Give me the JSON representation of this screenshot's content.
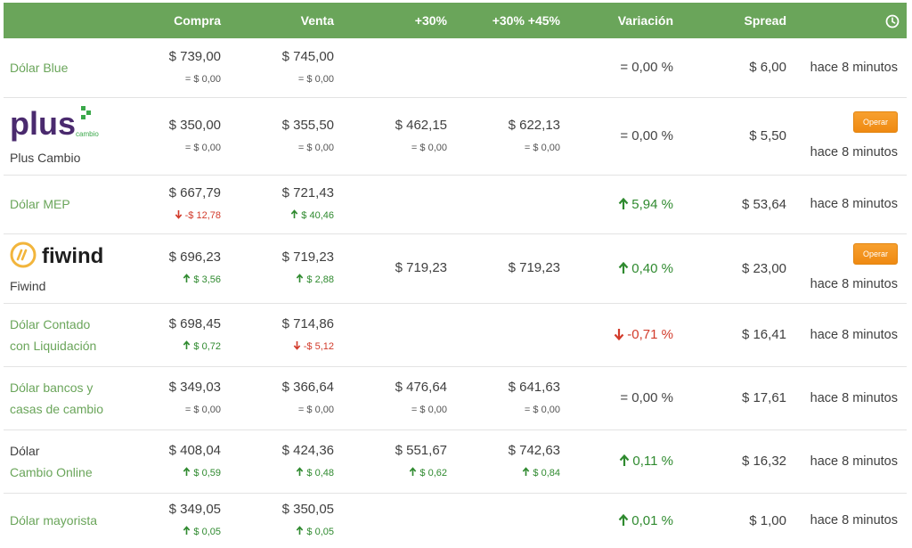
{
  "header": {
    "col_compra": "Compra",
    "col_venta": "Venta",
    "col_30": "+30%",
    "col_30_45": "+30% +45%",
    "col_variacion": "Variación",
    "col_spread": "Spread",
    "clock_icon": "clock-icon"
  },
  "colors": {
    "header_green": "#6aa55a",
    "up_green": "#2f8a2f",
    "down_red": "#d23b2b",
    "operar_orange": "#ef8a12"
  },
  "rows": [
    {
      "name": "Dólar Blue",
      "compra": "$ 739,00",
      "compra_delta": "= $ 0,00",
      "compra_dir": "eq",
      "venta": "$ 745,00",
      "venta_delta": "= $ 0,00",
      "venta_dir": "eq",
      "variacion": "= 0,00 %",
      "variacion_dir": "eq",
      "spread": "$ 6,00",
      "time": "hace 8 minutos"
    },
    {
      "name": "Plus Cambio",
      "logo_text": "plus",
      "logo_sub": "cambio",
      "compra": "$ 350,00",
      "compra_delta": "= $ 0,00",
      "compra_dir": "eq",
      "venta": "$ 355,50",
      "venta_delta": "= $ 0,00",
      "venta_dir": "eq",
      "p30": "$ 462,15",
      "p30_delta": "= $ 0,00",
      "p30_dir": "eq",
      "p3045": "$ 622,13",
      "p3045_delta": "= $ 0,00",
      "p3045_dir": "eq",
      "variacion": "= 0,00 %",
      "variacion_dir": "eq",
      "spread": "$ 5,50",
      "operar": "Operar",
      "time": "hace 8 minutos"
    },
    {
      "name": "Dólar MEP",
      "compra": "$ 667,79",
      "compra_delta": "-$ 12,78",
      "compra_dir": "down",
      "venta": "$ 721,43",
      "venta_delta": "$ 40,46",
      "venta_dir": "up",
      "variacion": "5,94 %",
      "variacion_dir": "up",
      "spread": "$ 53,64",
      "time": "hace 8 minutos"
    },
    {
      "name": "Fiwind",
      "logo_text": "fiwind",
      "compra": "$ 696,23",
      "compra_delta": "$ 3,56",
      "compra_dir": "up",
      "venta": "$ 719,23",
      "venta_delta": "$ 2,88",
      "venta_dir": "up",
      "p30": "$ 719,23",
      "p3045": "$ 719,23",
      "variacion": "0,40 %",
      "variacion_dir": "up",
      "spread": "$ 23,00",
      "operar": "Operar",
      "time": "hace 8 minutos"
    },
    {
      "name_line1": "Dólar Contado",
      "name_line2": "con Liquidación",
      "compra": "$ 698,45",
      "compra_delta": "$ 0,72",
      "compra_dir": "up",
      "venta": "$ 714,86",
      "venta_delta": "-$ 5,12",
      "venta_dir": "down",
      "variacion": "-0,71 %",
      "variacion_dir": "down",
      "spread": "$ 16,41",
      "time": "hace 8 minutos"
    },
    {
      "name_line1": "Dólar bancos y",
      "name_line2": "casas de cambio",
      "compra": "$ 349,03",
      "compra_delta": "= $ 0,00",
      "compra_dir": "eq",
      "venta": "$ 366,64",
      "venta_delta": "= $ 0,00",
      "venta_dir": "eq",
      "p30": "$ 476,64",
      "p30_delta": "= $ 0,00",
      "p30_dir": "eq",
      "p3045": "$ 641,63",
      "p3045_delta": "= $ 0,00",
      "p3045_dir": "eq",
      "variacion": "= 0,00 %",
      "variacion_dir": "eq",
      "spread": "$ 17,61",
      "time": "hace 8 minutos"
    },
    {
      "name_line1": "Dólar",
      "name_line2": "Cambio Online",
      "compra": "$ 408,04",
      "compra_delta": "$ 0,59",
      "compra_dir": "up",
      "venta": "$ 424,36",
      "venta_delta": "$ 0,48",
      "venta_dir": "up",
      "p30": "$ 551,67",
      "p30_delta": "$ 0,62",
      "p30_dir": "up",
      "p3045": "$ 742,63",
      "p3045_delta": "$ 0,84",
      "p3045_dir": "up",
      "variacion": "0,11 %",
      "variacion_dir": "up",
      "spread": "$ 16,32",
      "time": "hace 8 minutos"
    },
    {
      "name": "Dólar mayorista",
      "compra": "$ 349,05",
      "compra_delta": "$ 0,05",
      "compra_dir": "up",
      "venta": "$ 350,05",
      "venta_delta": "$ 0,05",
      "venta_dir": "up",
      "variacion": "0,01 %",
      "variacion_dir": "up",
      "spread": "$ 1,00",
      "time": "hace 8 minutos"
    }
  ]
}
